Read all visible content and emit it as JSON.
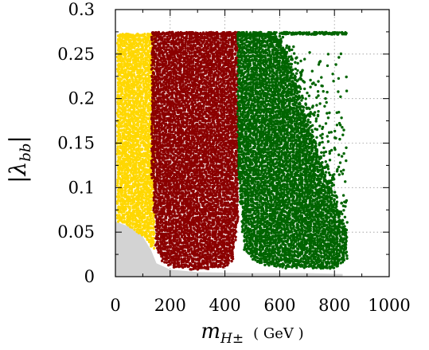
{
  "chart_data": {
    "type": "scatter",
    "title": "",
    "xlabel": "m",
    "xlabel_sub": "H±",
    "xlabel_unit": "( GeV )",
    "ylabel": "|λ",
    "ylabel_sub": "bb",
    "ylabel_close": "|",
    "xlim": [
      0,
      1000
    ],
    "ylim": [
      0,
      0.3
    ],
    "xticks": [
      0,
      200,
      400,
      600,
      800,
      1000
    ],
    "yticks": [
      0,
      0.05,
      0.1,
      0.15,
      0.2,
      0.25,
      0.3
    ],
    "xtick_labels": [
      "0",
      "200",
      "400",
      "600",
      "800",
      "1000"
    ],
    "ytick_labels": [
      "0",
      "0.05",
      "0.1",
      "0.15",
      "0.2",
      "0.25",
      "0.3"
    ],
    "grid": "dotted",
    "excluded_region": {
      "color": "#d3d3d3",
      "boundary": [
        [
          0,
          0.062
        ],
        [
          60,
          0.055
        ],
        [
          100,
          0.045
        ],
        [
          130,
          0.03
        ],
        [
          150,
          0.015
        ],
        [
          200,
          0.008
        ],
        [
          300,
          0.005
        ],
        [
          500,
          0.004
        ],
        [
          700,
          0.004
        ],
        [
          830,
          0.003
        ],
        [
          830,
          0
        ]
      ]
    },
    "series": [
      {
        "color": "#ffd700",
        "x_range": [
          10,
          145
        ],
        "y_top": 0.27,
        "lower_boundary": [
          [
            10,
            0.062
          ],
          [
            60,
            0.055
          ],
          [
            100,
            0.045
          ],
          [
            130,
            0.035
          ],
          [
            145,
            0.03
          ]
        ]
      },
      {
        "color": "#8b0000",
        "x_range": [
          135,
          450
        ],
        "y_top": 0.272,
        "lower_boundary": [
          [
            135,
            0.11
          ],
          [
            150,
            0.03
          ],
          [
            175,
            0.015
          ],
          [
            220,
            0.01
          ],
          [
            300,
            0.008
          ],
          [
            400,
            0.01
          ],
          [
            430,
            0.02
          ],
          [
            445,
            0.06
          ],
          [
            450,
            0.1
          ]
        ]
      },
      {
        "color": "#006400",
        "x_range": [
          450,
          845
        ],
        "y_top": 0.272,
        "lower_boundary": [
          [
            450,
            0.11
          ],
          [
            470,
            0.03
          ],
          [
            520,
            0.015
          ],
          [
            600,
            0.01
          ],
          [
            700,
            0.01
          ],
          [
            800,
            0.008
          ],
          [
            845,
            0.02
          ]
        ],
        "upper_boundary": [
          [
            450,
            0.272
          ],
          [
            550,
            0.272
          ],
          [
            600,
            0.26
          ],
          [
            650,
            0.22
          ],
          [
            700,
            0.17
          ],
          [
            750,
            0.13
          ],
          [
            800,
            0.085
          ],
          [
            845,
            0.05
          ]
        ]
      }
    ]
  }
}
